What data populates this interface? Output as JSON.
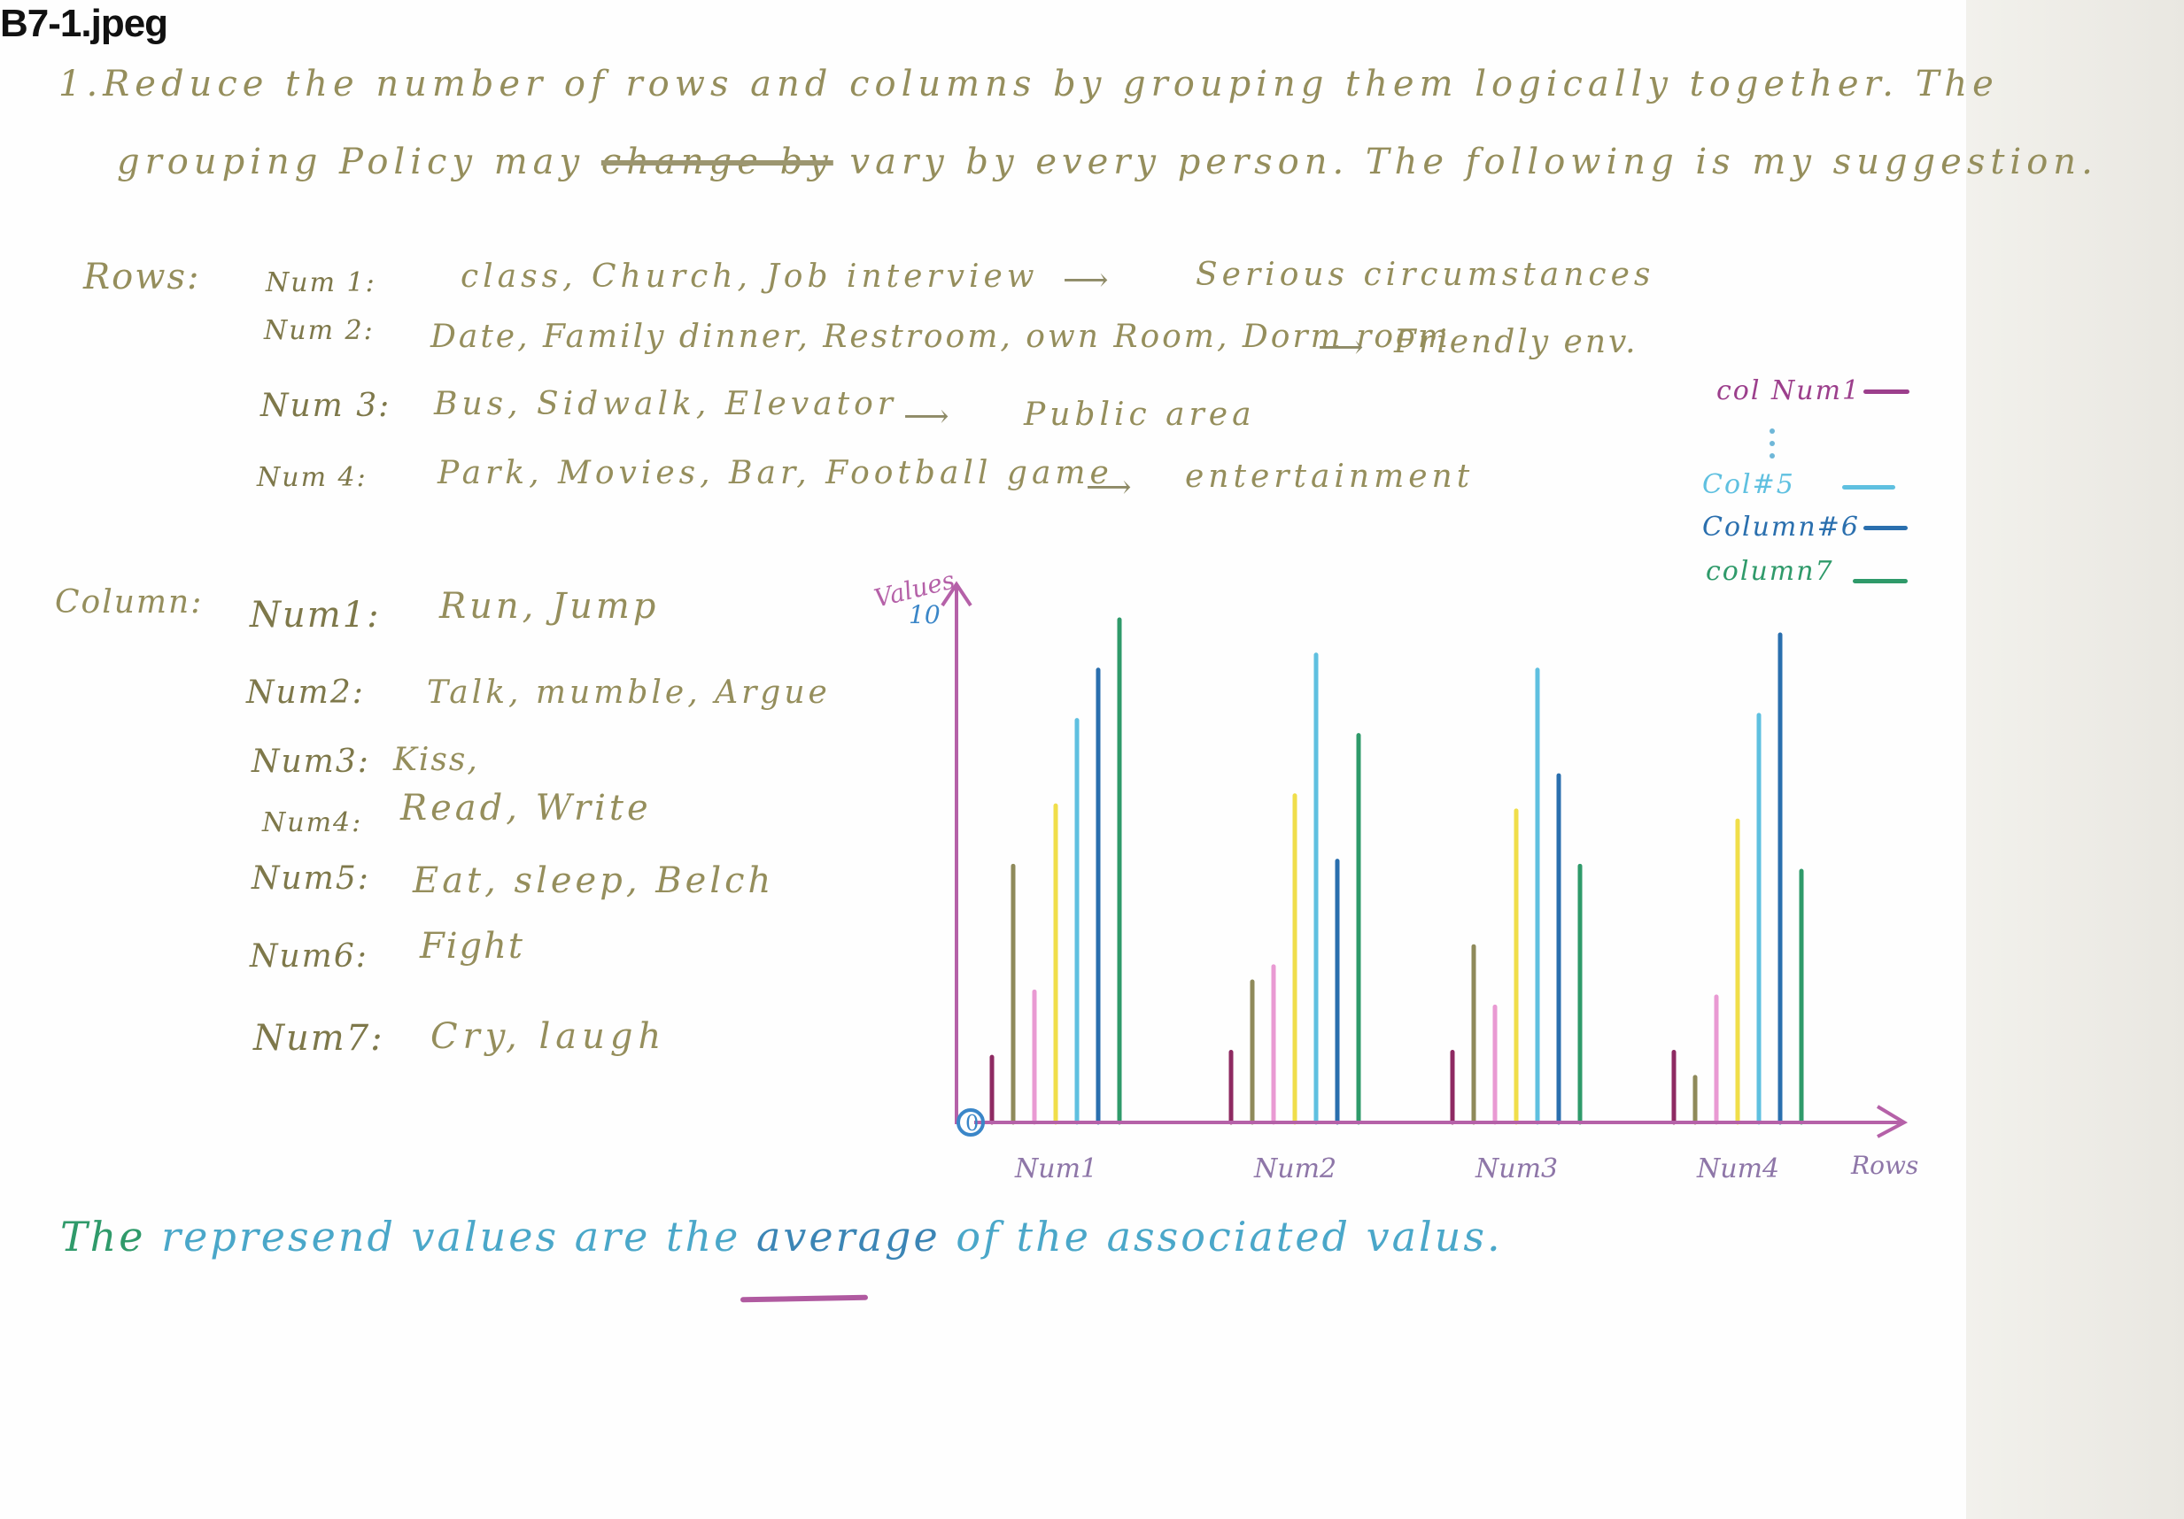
{
  "file_label": "B7-1.jpeg",
  "intro": {
    "line1": "1.Reduce the number of rows and columns by grouping them logically together. The",
    "line2_a": "grouping Policy may",
    "line2_struck": "change by",
    "line2_b": "vary by every person. The following is my suggestion."
  },
  "rows": {
    "label": "Rows:",
    "items": [
      {
        "num": "Num 1:",
        "text": "class, Church, Job interview",
        "arrow": "⟶",
        "result": "Serious circumstances"
      },
      {
        "num": "Num 2:",
        "text": "Date, Family dinner, Restroom, own Room, Dorm room",
        "arrow": "⟶",
        "result": "Friendly env."
      },
      {
        "num": "Num 3:",
        "text": "Bus, Sidwalk, Elevator",
        "arrow": "⟶",
        "result": "Public area"
      },
      {
        "num": "Num 4:",
        "text": "Park, Movies, Bar, Football game",
        "arrow": "⟶",
        "result": "entertainment"
      }
    ]
  },
  "columns": {
    "label": "Column:",
    "items": [
      {
        "num": "Num1:",
        "text": "Run, Jump"
      },
      {
        "num": "Num2:",
        "text": "Talk, mumble, Argue"
      },
      {
        "num": "Num3:",
        "text": "Kiss,"
      },
      {
        "num": "Num4:",
        "text": "Read, Write"
      },
      {
        "num": "Num5:",
        "text": "Eat, sleep, Belch"
      },
      {
        "num": "Num6:",
        "text": "Fight"
      },
      {
        "num": "Num7:",
        "text": "Cry, laugh"
      }
    ]
  },
  "legend": [
    {
      "label": "col Num1",
      "color": "#9c3f8c"
    },
    {
      "label": ":",
      "color": "#5fb8db"
    },
    {
      "label": "Col#5",
      "color": "#5fc0e0"
    },
    {
      "label": "Column#6",
      "color": "#2a6fae"
    },
    {
      "label": "column7",
      "color": "#2f9a6a"
    }
  ],
  "footer": {
    "part1": "The",
    "part2": "represend values are the",
    "part3": "average",
    "part4": "of the associated valus."
  },
  "colors": {
    "olive": "#958e5c",
    "axis": "#b561a8",
    "origin": "#3a86c8"
  },
  "chart_data": {
    "type": "bar",
    "ylabel": "Values",
    "xlabel": "Rows",
    "y_tick_labels": [
      "0",
      "10"
    ],
    "ylim": [
      0,
      10
    ],
    "categories": [
      "Num1",
      "Num2",
      "Num3",
      "Num4"
    ],
    "series": [
      {
        "color": "#8e2a62",
        "values": [
          1.3,
          1.4,
          1.4,
          1.4
        ]
      },
      {
        "color": "#8f8a5a",
        "values": [
          5.1,
          2.8,
          3.5,
          0.9
        ]
      },
      {
        "color": "#e99ad3",
        "values": [
          2.6,
          3.1,
          2.3,
          2.5
        ]
      },
      {
        "color": "#f0de4a",
        "values": [
          6.3,
          6.5,
          6.2,
          6.0
        ]
      },
      {
        "color": "#5fc0e0",
        "values": [
          8.0,
          9.3,
          9.0,
          8.1
        ]
      },
      {
        "color": "#2a6fae",
        "values": [
          9.0,
          5.2,
          6.9,
          9.7
        ]
      },
      {
        "color": "#2f9a6a",
        "values": [
          10.0,
          7.7,
          5.1,
          5.0
        ]
      }
    ]
  }
}
